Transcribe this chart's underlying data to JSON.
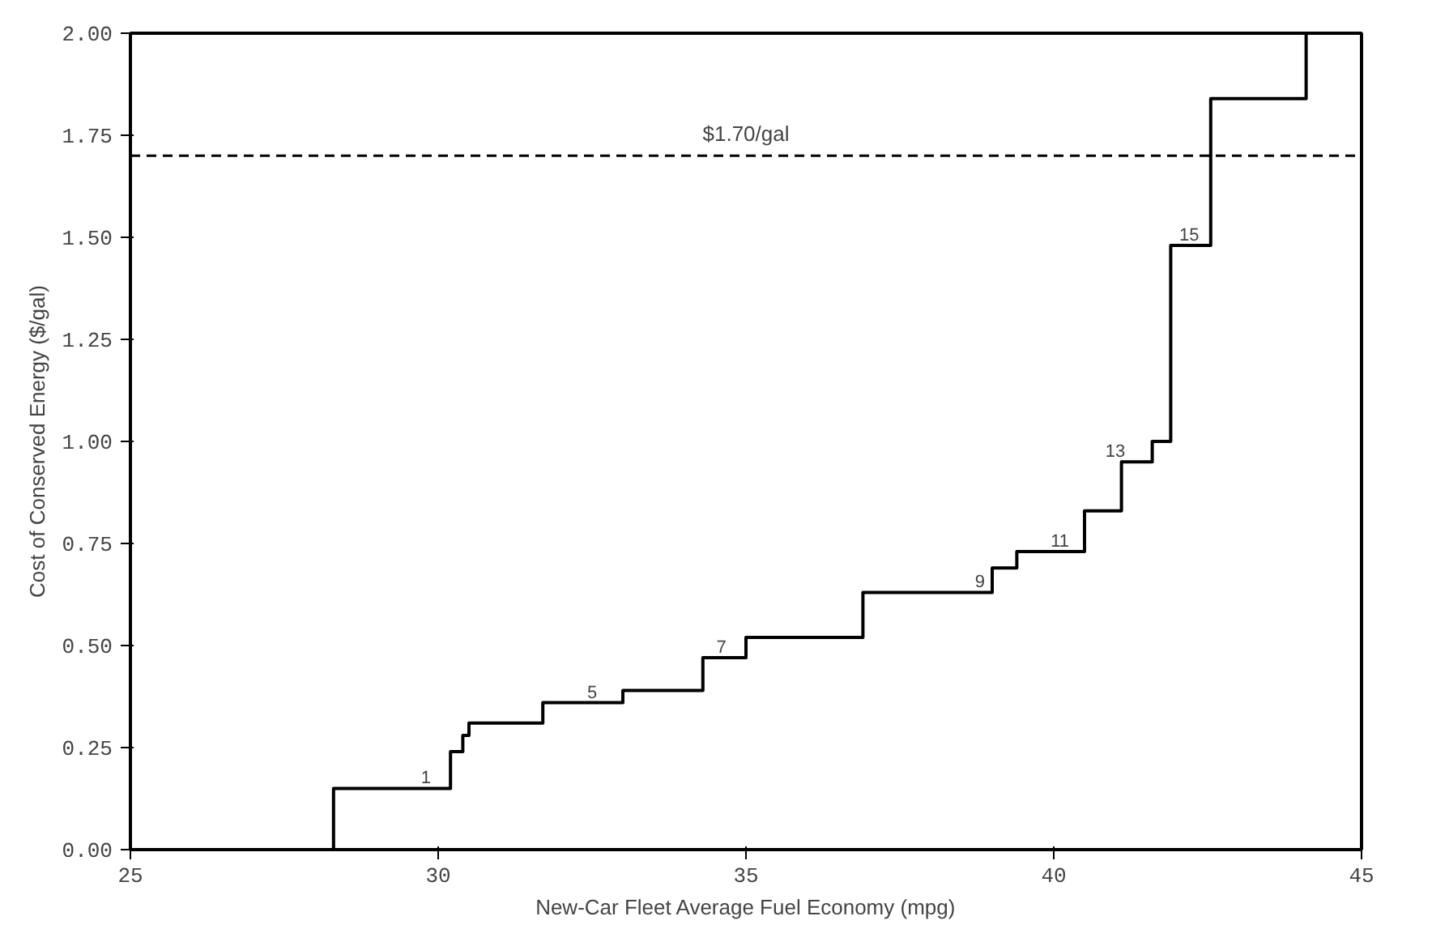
{
  "chart_data": {
    "type": "step",
    "xlabel": "New-Car Fleet Average Fuel Economy (mpg)",
    "ylabel": "Cost of Conserved Energy ($/gal)",
    "x": [
      28.3,
      28.3,
      30.2,
      30.4,
      30.5,
      31.7,
      33.0,
      34.3,
      35.0,
      36.9,
      39.0,
      39.4,
      40.5,
      41.1,
      41.6,
      41.9,
      42.55,
      44.1
    ],
    "values": [
      0,
      0.15,
      0.24,
      0.28,
      0.31,
      0.36,
      0.39,
      0.47,
      0.52,
      0.63,
      0.69,
      0.73,
      0.83,
      0.95,
      1.0,
      1.48,
      1.84,
      2.0
    ],
    "color": "#000000",
    "xlim": [
      25,
      45
    ],
    "ylim": [
      0,
      2
    ],
    "xticks": [
      25,
      30,
      35,
      40,
      45
    ],
    "yticks": [
      {
        "value": 0,
        "label": "0.00"
      },
      {
        "value": 0.25,
        "label": "0.25"
      },
      {
        "value": 0.5,
        "label": "0.50"
      },
      {
        "value": 0.75,
        "label": "0.75"
      },
      {
        "value": 1,
        "label": "1.00"
      },
      {
        "value": 1.25,
        "label": "1.25"
      },
      {
        "value": 1.5,
        "label": "1.50"
      },
      {
        "value": 1.75,
        "label": "1.75"
      },
      {
        "value": 2,
        "label": "2.00"
      }
    ],
    "ref_lines": [
      {
        "axis": "y",
        "value": 1.7,
        "label": "$1.70/gal",
        "line_style": "dashed",
        "color": "#000000"
      }
    ],
    "annotations": [
      {
        "text": "1",
        "x": 29.8,
        "y": 0.15
      },
      {
        "text": "5",
        "x": 32.5,
        "y": 0.36
      },
      {
        "text": "7",
        "x": 34.6,
        "y": 0.47
      },
      {
        "text": "9",
        "x": 38.8,
        "y": 0.63
      },
      {
        "text": "11",
        "x": 40.1,
        "y": 0.73
      },
      {
        "text": "13",
        "x": 41.0,
        "y": 0.95
      },
      {
        "text": "15",
        "x": 42.2,
        "y": 1.48
      }
    ],
    "grid": false
  }
}
